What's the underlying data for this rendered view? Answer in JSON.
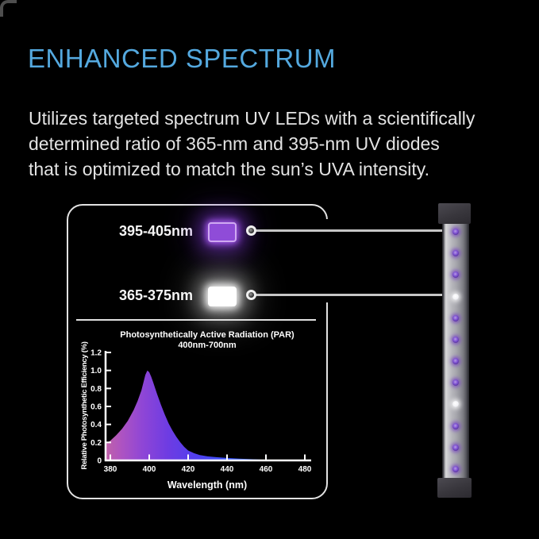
{
  "header": {
    "title": "ENHANCED SPECTRUM",
    "body_lines": [
      "Utilizes targeted spectrum UV LEDs with a scientifically",
      "determined ratio of 365-nm and 395-nm UV diodes",
      "that is optimized to match the sun’s UVA intensity."
    ]
  },
  "panel": {
    "rows": [
      {
        "label": "395-405nm",
        "swatch": "purple"
      },
      {
        "label": "365-375nm",
        "swatch": "white"
      }
    ]
  },
  "chart_data": {
    "type": "area",
    "title": "Photosynthetically Active Radiation (PAR)",
    "subtitle": "400nm-700nm",
    "xlabel": "Wavelength (nm)",
    "ylabel": "Relative Photosynthetic Efficiency (%)",
    "x_ticks": [
      380,
      400,
      420,
      440,
      460,
      480
    ],
    "y_ticks": [
      0,
      0.2,
      0.4,
      0.6,
      0.8,
      1.0,
      1.2
    ],
    "xlim": [
      377.5,
      483
    ],
    "ylim": [
      0,
      1.2
    ],
    "grid": false,
    "legend": false,
    "series": [
      {
        "name": "relative photosynthetic efficiency",
        "x": [
          377.5,
          380,
          383,
          386,
          389,
          392,
          394,
          396,
          398,
          399,
          400,
          401,
          402,
          404,
          406,
          408,
          410,
          412,
          414,
          416,
          418,
          420,
          423,
          426,
          430,
          435,
          440,
          446,
          452,
          458,
          464,
          470,
          476,
          480
        ],
        "y": [
          0.19,
          0.22,
          0.28,
          0.35,
          0.44,
          0.56,
          0.66,
          0.78,
          0.95,
          1.0,
          0.98,
          0.93,
          0.87,
          0.74,
          0.62,
          0.51,
          0.41,
          0.33,
          0.26,
          0.2,
          0.15,
          0.11,
          0.08,
          0.06,
          0.045,
          0.035,
          0.027,
          0.02,
          0.014,
          0.009,
          0.005,
          0.003,
          0.001,
          0.0
        ]
      }
    ],
    "gradient_stops": [
      [
        0.0,
        "#c062a8"
      ],
      [
        0.08,
        "#ad53c2"
      ],
      [
        0.18,
        "#8f46d6"
      ],
      [
        0.3,
        "#6f3ce2"
      ],
      [
        0.45,
        "#4f3fee"
      ],
      [
        0.6,
        "#3752fa"
      ],
      [
        0.75,
        "#2b60ff"
      ],
      [
        1.0,
        "#2868ff"
      ]
    ]
  },
  "led_bar": {
    "leds": [
      "purple",
      "purple",
      "purple",
      "white",
      "purple",
      "purple",
      "purple",
      "purple",
      "white",
      "purple",
      "purple",
      "purple"
    ]
  },
  "colors": {
    "background": "#000000",
    "title_blue": "#54a9df",
    "body_text": "#e3e3e3",
    "panel_border": "#e2e2e2",
    "connector_line": "#c6c6c6",
    "swatch_purple": "#8f4cd8",
    "swatch_purple_border": "#cfa9f2",
    "swatch_white": "#ffffff",
    "led_purple": "#7c4fd0",
    "led_white": "#ffffff",
    "axis": "#ffffff"
  }
}
